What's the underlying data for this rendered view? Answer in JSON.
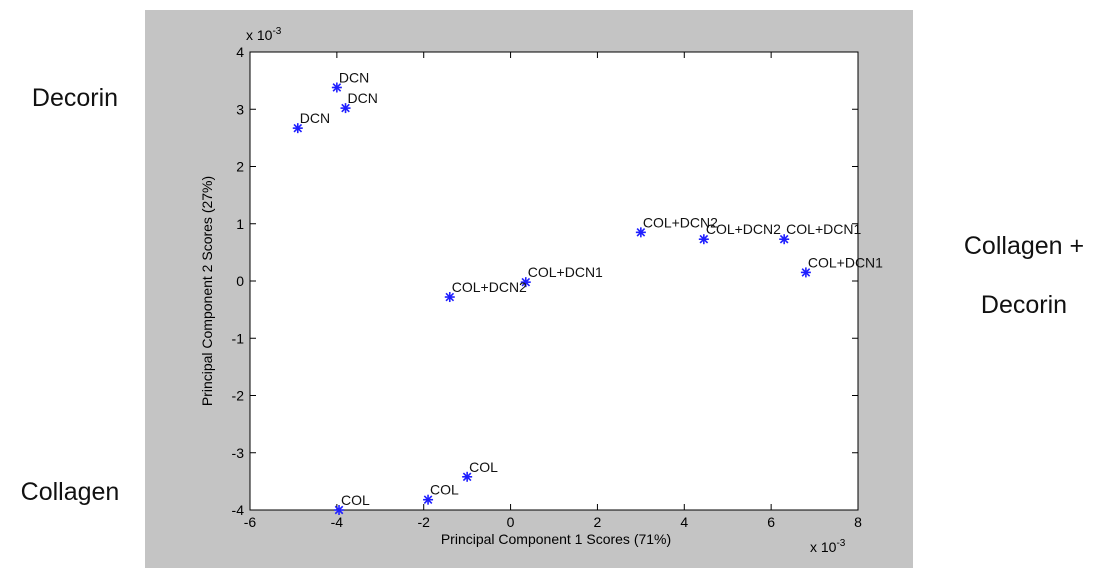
{
  "side_labels": {
    "decorin": "Decorin",
    "collagen_decorin_line1": "Collagen +",
    "collagen_decorin_line2": "Decorin",
    "collagen": "Collagen"
  },
  "chart_data": {
    "type": "scatter",
    "xlabel": "Principal Component  1 Scores (71%)",
    "ylabel": "Principal Component  2 Scores (27%)",
    "x_exponent_label": "x 10",
    "x_exponent_power": "-3",
    "y_exponent_label": "x 10",
    "y_exponent_power": "-3",
    "xlim": [
      -6,
      8
    ],
    "ylim": [
      -4,
      4
    ],
    "xticks": [
      -6,
      -4,
      -2,
      0,
      2,
      4,
      6,
      8
    ],
    "yticks": [
      -4,
      -3,
      -2,
      -1,
      0,
      1,
      2,
      3,
      4
    ],
    "grid": false,
    "marker_color": "#1f1fff",
    "points": [
      {
        "x": -4.0,
        "y": 3.38,
        "label": "DCN"
      },
      {
        "x": -3.8,
        "y": 3.02,
        "label": "DCN"
      },
      {
        "x": -4.9,
        "y": 2.67,
        "label": "DCN"
      },
      {
        "x": 3.0,
        "y": 0.85,
        "label": "COL+DCN2"
      },
      {
        "x": 4.45,
        "y": 0.73,
        "label": "COL+DCN2"
      },
      {
        "x": 6.3,
        "y": 0.73,
        "label": "COL+DCN1"
      },
      {
        "x": 6.8,
        "y": 0.15,
        "label": "COL+DCN1"
      },
      {
        "x": 0.35,
        "y": -0.02,
        "label": "COL+DCN1"
      },
      {
        "x": -1.4,
        "y": -0.28,
        "label": "COL+DCN2"
      },
      {
        "x": -1.0,
        "y": -3.42,
        "label": "COL"
      },
      {
        "x": -1.9,
        "y": -3.82,
        "label": "COL"
      },
      {
        "x": -3.95,
        "y": -4.0,
        "label": "COL"
      }
    ]
  }
}
